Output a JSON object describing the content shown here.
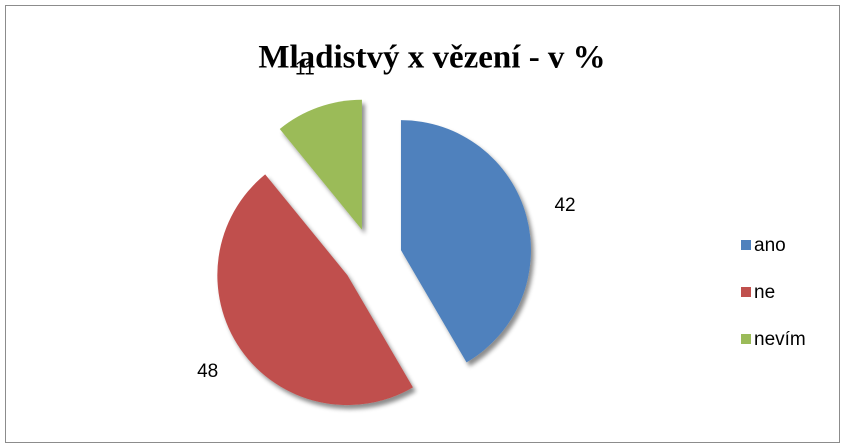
{
  "chart_data": {
    "type": "pie",
    "title": "Mladistvý  x  vězení  - v %",
    "categories": [
      "ano",
      "ne",
      "nevím"
    ],
    "values": [
      42,
      48,
      11
    ],
    "colors": [
      "#4f81bd",
      "#c0504d",
      "#9bbb59"
    ],
    "legend": "right",
    "exploded": true
  }
}
